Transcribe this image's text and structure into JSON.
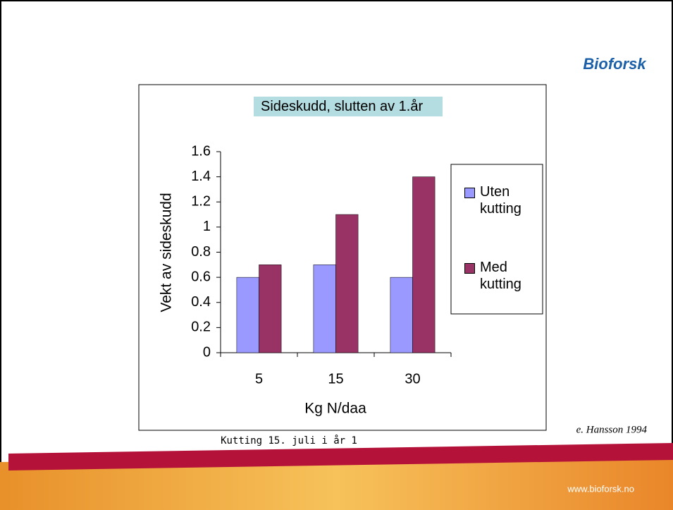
{
  "chart_data": {
    "type": "bar",
    "title": "Sideskudd, slutten av 1.år",
    "y_label": "Vekt av sideskudd",
    "x_label": "Kg N/daa",
    "categories": [
      "5",
      "15",
      "30"
    ],
    "series": [
      {
        "name": "Uten kutting",
        "color": "#9999ff",
        "values": [
          0.6,
          0.7,
          0.6
        ]
      },
      {
        "name": "Med kutting",
        "color": "#993366",
        "values": [
          0.7,
          1.1,
          1.4
        ]
      }
    ],
    "ylim": [
      0,
      1.6
    ],
    "yticks": [
      0,
      0.2,
      0.4,
      0.6,
      0.8,
      1,
      1.2,
      1.4,
      1.6
    ],
    "grid": false
  },
  "slide": {
    "logo": "Bioforsk",
    "note": "Kutting 15. juli i år 1",
    "source": "e. Hansson 1994",
    "url": "www.bioforsk.no"
  }
}
